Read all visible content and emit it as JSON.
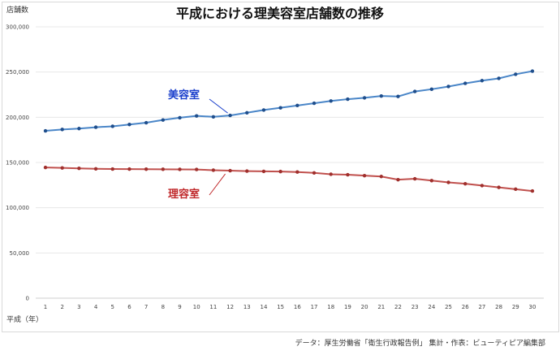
{
  "chart_data": {
    "type": "line",
    "title": "平成における理美容室店舗数の推移",
    "ylabel": "店舗数",
    "xlabel": "平成（年）",
    "source": "データ：厚生労働省「衛生行政報告例」 集計・作表：ビューティピア編集部",
    "ylim": [
      0,
      300000
    ],
    "yticks": [
      0,
      50000,
      100000,
      150000,
      200000,
      250000,
      300000
    ],
    "ytick_labels": [
      "0",
      "50,000",
      "100,000",
      "150,000",
      "200,000",
      "250,000",
      "300,000"
    ],
    "grid": true,
    "x": [
      1,
      2,
      3,
      4,
      5,
      6,
      7,
      8,
      9,
      10,
      11,
      12,
      13,
      14,
      15,
      16,
      17,
      18,
      19,
      20,
      21,
      22,
      23,
      24,
      25,
      26,
      27,
      28,
      29,
      30
    ],
    "series": [
      {
        "name": "美容室",
        "color": "#4a86c8",
        "label_color": "#1a3fcc",
        "values": [
          185000,
          186500,
          187500,
          189000,
          190000,
          192000,
          194000,
          197000,
          199500,
          201500,
          200500,
          202000,
          205000,
          208000,
          210500,
          213000,
          215500,
          218000,
          220000,
          221500,
          223500,
          223000,
          228500,
          231000,
          234000,
          237500,
          240500,
          243000,
          247500,
          251000
        ]
      },
      {
        "name": "理容室",
        "color": "#c0504d",
        "label_color": "#c0282a",
        "values": [
          144500,
          144000,
          143500,
          143000,
          142800,
          142700,
          142600,
          142500,
          142400,
          142300,
          141500,
          141000,
          140500,
          140200,
          140000,
          139500,
          138500,
          137000,
          136500,
          135500,
          134500,
          131000,
          132000,
          130000,
          128000,
          126500,
          124500,
          122500,
          120500,
          118500
        ]
      }
    ]
  }
}
